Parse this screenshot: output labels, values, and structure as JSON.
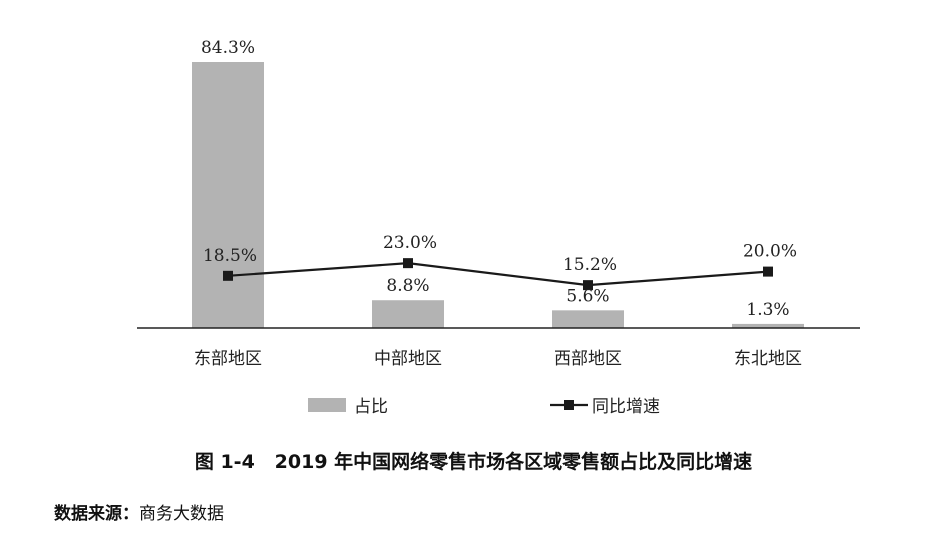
{
  "chart_data": {
    "type": "bar",
    "categories": [
      "东部地区",
      "中部地区",
      "西部地区",
      "东北地区"
    ],
    "series": [
      {
        "name": "占比",
        "kind": "bar",
        "color": "#b3b3b3",
        "values": [
          84.3,
          8.8,
          5.6,
          1.3
        ],
        "labels": [
          "84.3%",
          "8.8%",
          "5.6%",
          "1.3%"
        ]
      },
      {
        "name": "同比增速",
        "kind": "line",
        "color": "#1a1a1a",
        "marker": "square",
        "values": [
          18.5,
          23.0,
          15.2,
          20.0
        ],
        "labels": [
          "18.5%",
          "23.0%",
          "15.2%",
          "20.0%"
        ]
      }
    ],
    "ylim": [
      0,
      85
    ],
    "grid": false,
    "legend_position": "bottom"
  },
  "caption": {
    "figure_number": "图 1-4",
    "title": "2019 年中国网络零售市场各区域零售额占比及同比增速"
  },
  "source": {
    "label": "数据来源：",
    "text": "商务大数据"
  }
}
